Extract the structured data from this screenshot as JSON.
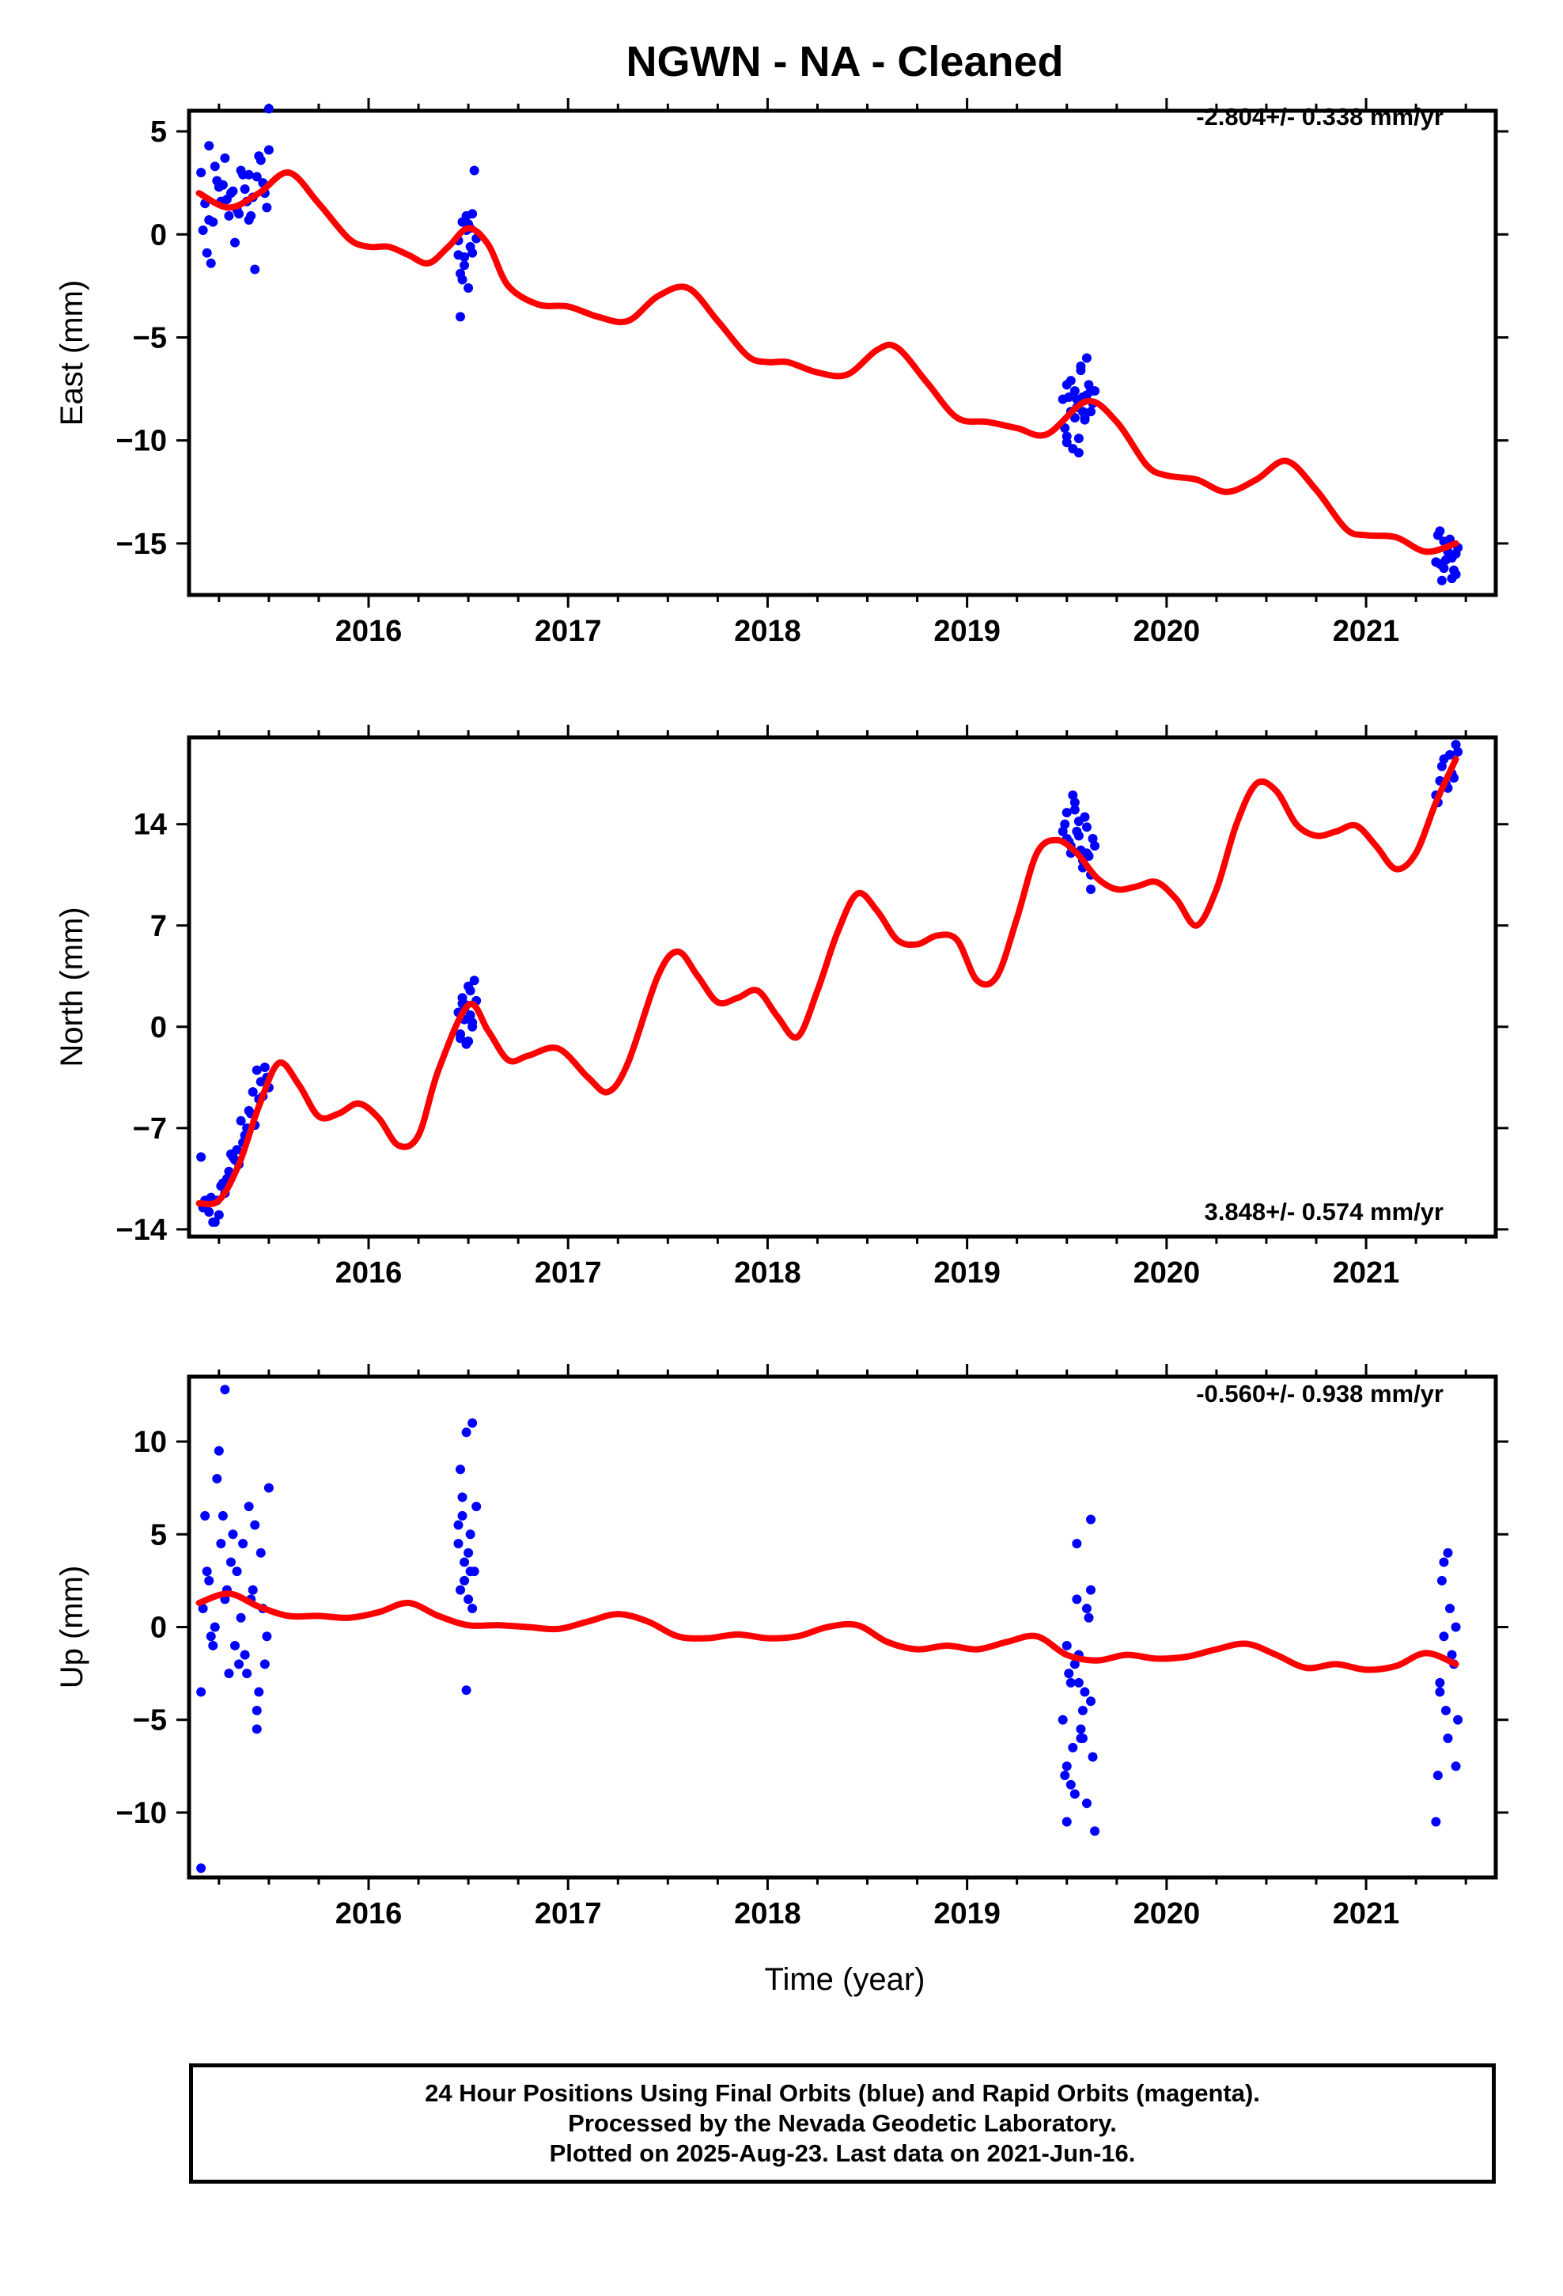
{
  "title": "NGWN  - NA - Cleaned",
  "x_axis_label": "Time (year)",
  "colors": {
    "data_points": "#0000ff",
    "model_fit": "#ff0000",
    "frame": "#000000"
  },
  "footer": {
    "line1": "24 Hour Positions Using Final Orbits (blue) and Rapid Orbits (magenta).",
    "line2": "Processed by the Nevada Geodetic Laboratory.",
    "line3": "Plotted on 2025-Aug-23. Last data on 2021-Jun-16."
  },
  "chart_data": [
    {
      "type": "scatter",
      "ylabel": "East (mm)",
      "rate_label": "-2.804+/- 0.338 mm/yr",
      "xlim": [
        2015.1,
        2021.65
      ],
      "ylim": [
        -17.5,
        6.0
      ],
      "x_ticks": [
        2016,
        2017,
        2018,
        2019,
        2020,
        2021
      ],
      "y_ticks": [
        5,
        0,
        -5,
        -10,
        -15
      ],
      "y_tick_labels": [
        "5",
        "0",
        "−5",
        "−10",
        "−15"
      ],
      "series": [
        {
          "role": "fit",
          "x": [
            2015.15,
            2015.3,
            2015.45,
            2015.6,
            2015.75,
            2015.9,
            2016.0,
            2016.1,
            2016.2,
            2016.3,
            2016.4,
            2016.5,
            2016.6,
            2016.7,
            2016.85,
            2017.0,
            2017.15,
            2017.3,
            2017.45,
            2017.6,
            2017.75,
            2017.9,
            2018.0,
            2018.1,
            2018.25,
            2018.4,
            2018.55,
            2018.65,
            2018.8,
            2018.95,
            2019.1,
            2019.25,
            2019.4,
            2019.6,
            2019.75,
            2019.9,
            2020.0,
            2020.15,
            2020.3,
            2020.45,
            2020.6,
            2020.75,
            2020.9,
            2021.0,
            2021.15,
            2021.3,
            2021.45
          ],
          "y": [
            2.0,
            1.3,
            2.0,
            3.0,
            1.5,
            -0.2,
            -0.6,
            -0.6,
            -1.0,
            -1.4,
            -0.6,
            0.3,
            -0.5,
            -2.5,
            -3.4,
            -3.5,
            -4.0,
            -4.2,
            -3.0,
            -2.6,
            -4.2,
            -5.9,
            -6.2,
            -6.2,
            -6.7,
            -6.8,
            -5.6,
            -5.5,
            -7.2,
            -8.9,
            -9.1,
            -9.4,
            -9.7,
            -8.1,
            -9.1,
            -11.2,
            -11.7,
            -11.9,
            -12.5,
            -11.9,
            -11.0,
            -12.4,
            -14.3,
            -14.6,
            -14.7,
            -15.4,
            -15.0
          ]
        },
        {
          "role": "observations",
          "x": [
            2015.16,
            2015.18,
            2015.2,
            2015.22,
            2015.24,
            2015.26,
            2015.28,
            2015.3,
            2015.32,
            2015.34,
            2015.36,
            2015.38,
            2015.4,
            2015.42,
            2015.44,
            2015.46,
            2015.48,
            2015.5,
            2015.17,
            2015.21,
            2015.25,
            2015.29,
            2015.33,
            2015.37,
            2015.41,
            2015.45,
            2015.49,
            2015.19,
            2015.27,
            2015.35,
            2015.43,
            2015.23,
            2015.31,
            2015.39,
            2015.47,
            2015.2,
            2015.4,
            2015.5,
            2016.45,
            2016.46,
            2016.47,
            2016.48,
            2016.49,
            2016.5,
            2016.51,
            2016.52,
            2016.53,
            2016.54,
            2016.46,
            2016.48,
            2016.5,
            2016.52,
            2016.47,
            2016.49,
            2016.51,
            2016.45,
            2019.48,
            2019.5,
            2019.52,
            2019.54,
            2019.56,
            2019.58,
            2019.6,
            2019.62,
            2019.64,
            2019.49,
            2019.51,
            2019.53,
            2019.55,
            2019.57,
            2019.59,
            2019.61,
            2019.63,
            2019.5,
            2019.54,
            2019.58,
            2019.62,
            2019.52,
            2019.56,
            2019.6,
            2019.55,
            2019.57,
            2019.59,
            2019.5,
            2021.35,
            2021.37,
            2021.39,
            2021.41,
            2021.43,
            2021.45,
            2021.36,
            2021.38,
            2021.4,
            2021.42,
            2021.44,
            2021.46,
            2021.37,
            2021.41,
            2021.45,
            2021.39,
            2021.43
          ],
          "y": [
            3.0,
            1.5,
            4.3,
            0.6,
            2.6,
            1.6,
            3.7,
            0.9,
            2.1,
            1.2,
            3.1,
            2.2,
            0.7,
            1.8,
            2.8,
            3.6,
            2.0,
            4.1,
            0.2,
            -1.4,
            2.3,
            1.7,
            -0.4,
            2.9,
            0.9,
            3.8,
            1.3,
            -0.9,
            2.4,
            1.0,
            -1.7,
            3.3,
            2.0,
            1.6,
            2.5,
            0.7,
            2.9,
            6.1,
            -0.3,
            -1.9,
            0.6,
            -1.1,
            0.2,
            -2.6,
            -0.6,
            1.0,
            3.1,
            -0.2,
            -4.0,
            -1.5,
            0.5,
            -0.9,
            -2.2,
            0.9,
            0.3,
            -1.0,
            -8.0,
            -9.8,
            -7.1,
            -8.9,
            -10.6,
            -7.9,
            -6.0,
            -8.6,
            -7.6,
            -9.4,
            -7.9,
            -10.4,
            -8.4,
            -6.4,
            -9.0,
            -7.3,
            -8.2,
            -10.1,
            -7.6,
            -8.6,
            -7.6,
            -8.6,
            -9.9,
            -7.8,
            -8.0,
            -6.6,
            -8.9,
            -7.3,
            -15.9,
            -14.4,
            -16.2,
            -15.1,
            -16.7,
            -15.5,
            -14.6,
            -16.8,
            -15.8,
            -14.8,
            -16.3,
            -15.2,
            -16.0,
            -15.4,
            -16.5,
            -14.9,
            -15.7
          ]
        }
      ]
    },
    {
      "type": "scatter",
      "ylabel": "North (mm)",
      "rate_label": "3.848+/- 0.574 mm/yr",
      "xlim": [
        2015.1,
        2021.65
      ],
      "ylim": [
        -14.5,
        20.0
      ],
      "x_ticks": [
        2016,
        2017,
        2018,
        2019,
        2020,
        2021
      ],
      "y_ticks": [
        14,
        7,
        0,
        -7,
        -14
      ],
      "y_tick_labels": [
        "14",
        "7",
        "0",
        "−7",
        "−14"
      ],
      "series": [
        {
          "role": "fit",
          "x": [
            2015.15,
            2015.25,
            2015.35,
            2015.45,
            2015.55,
            2015.65,
            2015.75,
            2015.85,
            2015.95,
            2016.05,
            2016.15,
            2016.25,
            2016.35,
            2016.5,
            2016.6,
            2016.7,
            2016.8,
            2016.95,
            2017.1,
            2017.2,
            2017.3,
            2017.45,
            2017.55,
            2017.65,
            2017.75,
            2017.85,
            2017.95,
            2018.05,
            2018.15,
            2018.25,
            2018.35,
            2018.45,
            2018.55,
            2018.65,
            2018.75,
            2018.85,
            2018.95,
            2019.05,
            2019.15,
            2019.25,
            2019.35,
            2019.45,
            2019.55,
            2019.65,
            2019.75,
            2019.85,
            2019.95,
            2020.05,
            2020.15,
            2020.25,
            2020.35,
            2020.45,
            2020.55,
            2020.65,
            2020.75,
            2020.85,
            2020.95,
            2021.05,
            2021.15,
            2021.25,
            2021.35,
            2021.45
          ],
          "y": [
            -12.2,
            -12.0,
            -9.5,
            -5.5,
            -2.5,
            -4.0,
            -6.2,
            -6.0,
            -5.3,
            -6.3,
            -8.2,
            -7.5,
            -3.0,
            1.5,
            -0.3,
            -2.3,
            -2.0,
            -1.5,
            -3.5,
            -4.5,
            -2.5,
            3.5,
            5.2,
            3.5,
            1.7,
            2.0,
            2.5,
            0.7,
            -0.7,
            2.5,
            6.5,
            9.2,
            8.0,
            6.0,
            5.7,
            6.3,
            6.0,
            3.2,
            3.5,
            7.5,
            12.0,
            12.9,
            12.0,
            10.3,
            9.5,
            9.7,
            10.0,
            8.8,
            7.0,
            9.5,
            14.0,
            16.8,
            16.3,
            14.0,
            13.2,
            13.5,
            13.9,
            12.5,
            10.9,
            12.0,
            15.5,
            18.5
          ]
        },
        {
          "role": "observations",
          "x": [
            2015.16,
            2015.18,
            2015.2,
            2015.22,
            2015.24,
            2015.26,
            2015.28,
            2015.3,
            2015.32,
            2015.34,
            2015.36,
            2015.38,
            2015.4,
            2015.42,
            2015.44,
            2015.46,
            2015.48,
            2015.5,
            2015.17,
            2015.21,
            2015.25,
            2015.29,
            2015.33,
            2015.37,
            2015.41,
            2015.45,
            2015.49,
            2015.19,
            2015.27,
            2015.35,
            2015.43,
            2015.23,
            2015.31,
            2015.39,
            2015.47,
            2016.45,
            2016.46,
            2016.47,
            2016.48,
            2016.49,
            2016.5,
            2016.51,
            2016.52,
            2016.53,
            2016.54,
            2016.46,
            2016.48,
            2016.5,
            2016.52,
            2016.47,
            2016.49,
            2016.51,
            2019.48,
            2019.5,
            2019.52,
            2019.54,
            2019.56,
            2019.58,
            2019.6,
            2019.62,
            2019.64,
            2019.49,
            2019.51,
            2019.53,
            2019.55,
            2019.57,
            2019.59,
            2019.61,
            2019.63,
            2019.5,
            2019.54,
            2019.58,
            2019.62,
            2019.52,
            2019.56,
            2019.6,
            2021.35,
            2021.37,
            2021.39,
            2021.41,
            2021.43,
            2021.45,
            2021.36,
            2021.38,
            2021.4,
            2021.42,
            2021.44,
            2021.46
          ],
          "y": [
            -9.0,
            -12.0,
            -12.8,
            -13.5,
            -12.0,
            -11.0,
            -11.5,
            -10.0,
            -9.0,
            -8.5,
            -6.5,
            -7.5,
            -5.8,
            -4.5,
            -3.0,
            -3.8,
            -2.8,
            -4.2,
            -12.5,
            -11.8,
            -13.0,
            -10.5,
            -9.2,
            -8.0,
            -6.0,
            -5.0,
            -3.5,
            -12.0,
            -10.8,
            -9.5,
            -6.8,
            -13.5,
            -8.8,
            -7.0,
            -4.8,
            1.0,
            -0.5,
            2.0,
            0.5,
            1.5,
            -1.0,
            2.5,
            0.0,
            3.2,
            1.8,
            -0.8,
            1.2,
            2.8,
            0.3,
            1.6,
            -1.2,
            0.8,
            13.5,
            14.8,
            12.0,
            15.5,
            13.2,
            11.0,
            13.8,
            10.5,
            12.5,
            14.0,
            12.8,
            16.0,
            13.5,
            12.2,
            14.5,
            11.8,
            13.0,
            13.0,
            15.0,
            11.5,
            9.5,
            12.5,
            14.2,
            12.0,
            16.0,
            17.0,
            18.5,
            16.5,
            17.5,
            19.5,
            15.5,
            18.0,
            16.8,
            18.8,
            17.2,
            19.0
          ]
        }
      ]
    },
    {
      "type": "scatter",
      "ylabel": "Up (mm)",
      "rate_label": "-0.560+/- 0.938 mm/yr",
      "xlim": [
        2015.1,
        2021.65
      ],
      "ylim": [
        -13.5,
        13.5
      ],
      "x_ticks": [
        2016,
        2017,
        2018,
        2019,
        2020,
        2021
      ],
      "y_ticks": [
        10,
        5,
        0,
        -5,
        -10
      ],
      "y_tick_labels": [
        "10",
        "5",
        "0",
        "−5",
        "−10"
      ],
      "series": [
        {
          "role": "fit",
          "x": [
            2015.15,
            2015.3,
            2015.45,
            2015.6,
            2015.75,
            2015.9,
            2016.05,
            2016.2,
            2016.35,
            2016.5,
            2016.65,
            2016.8,
            2016.95,
            2017.1,
            2017.25,
            2017.4,
            2017.55,
            2017.7,
            2017.85,
            2018.0,
            2018.15,
            2018.3,
            2018.45,
            2018.6,
            2018.75,
            2018.9,
            2019.05,
            2019.2,
            2019.35,
            2019.5,
            2019.65,
            2019.8,
            2019.95,
            2020.1,
            2020.25,
            2020.4,
            2020.55,
            2020.7,
            2020.85,
            2021.0,
            2021.15,
            2021.3,
            2021.45
          ],
          "y": [
            1.3,
            1.8,
            1.1,
            0.6,
            0.6,
            0.5,
            0.8,
            1.3,
            0.6,
            0.1,
            0.1,
            0.0,
            -0.1,
            0.3,
            0.7,
            0.3,
            -0.5,
            -0.6,
            -0.4,
            -0.6,
            -0.5,
            0.0,
            0.1,
            -0.8,
            -1.2,
            -1.0,
            -1.2,
            -0.8,
            -0.5,
            -1.5,
            -1.8,
            -1.5,
            -1.7,
            -1.6,
            -1.2,
            -0.9,
            -1.5,
            -2.2,
            -2.0,
            -2.3,
            -2.1,
            -1.4,
            -2.0
          ]
        },
        {
          "role": "observations",
          "x": [
            2015.16,
            2015.18,
            2015.2,
            2015.22,
            2015.24,
            2015.26,
            2015.28,
            2015.3,
            2015.32,
            2015.34,
            2015.36,
            2015.38,
            2015.4,
            2015.42,
            2015.44,
            2015.46,
            2015.48,
            2015.5,
            2015.17,
            2015.21,
            2015.25,
            2015.29,
            2015.33,
            2015.37,
            2015.41,
            2015.45,
            2015.49,
            2015.19,
            2015.27,
            2015.35,
            2015.43,
            2015.23,
            2015.31,
            2015.39,
            2015.47,
            2015.16,
            2015.28,
            2015.44,
            2016.45,
            2016.46,
            2016.47,
            2016.48,
            2016.49,
            2016.5,
            2016.51,
            2016.52,
            2016.53,
            2016.54,
            2016.46,
            2016.48,
            2016.5,
            2016.52,
            2016.47,
            2016.49,
            2016.51,
            2016.45,
            2019.48,
            2019.5,
            2019.52,
            2019.54,
            2019.56,
            2019.58,
            2019.6,
            2019.62,
            2019.64,
            2019.49,
            2019.51,
            2019.53,
            2019.55,
            2019.57,
            2019.59,
            2019.61,
            2019.63,
            2019.5,
            2019.54,
            2019.58,
            2019.62,
            2019.52,
            2019.56,
            2019.6,
            2019.55,
            2019.57,
            2019.5,
            2019.62,
            2021.35,
            2021.37,
            2021.39,
            2021.41,
            2021.43,
            2021.45,
            2021.36,
            2021.38,
            2021.4,
            2021.42,
            2021.44,
            2021.46,
            2021.37,
            2021.41,
            2021.45,
            2021.39
          ],
          "y": [
            -3.5,
            6.0,
            2.5,
            -1.0,
            8.0,
            4.5,
            1.5,
            -2.5,
            5.0,
            3.0,
            0.5,
            -1.5,
            6.5,
            2.0,
            -4.5,
            4.0,
            -2.0,
            7.5,
            1.0,
            -0.5,
            9.5,
            2.0,
            -1.0,
            4.5,
            1.5,
            -3.5,
            -0.5,
            3.0,
            6.0,
            -2.0,
            5.5,
            0.0,
            3.5,
            -2.5,
            1.0,
            -13.0,
            12.8,
            -5.5,
            4.5,
            2.0,
            7.0,
            3.5,
            10.5,
            1.5,
            5.0,
            11.0,
            3.0,
            6.5,
            8.5,
            2.5,
            4.0,
            1.0,
            6.0,
            -3.4,
            3.0,
            5.5,
            -5.0,
            -7.5,
            -3.0,
            -9.0,
            -1.5,
            -6.0,
            1.0,
            -4.0,
            -11.0,
            -8.0,
            -2.5,
            -6.5,
            4.5,
            -5.5,
            -3.5,
            0.5,
            -7.0,
            -10.5,
            -2.0,
            -4.5,
            5.8,
            -8.5,
            -3.0,
            -9.5,
            1.5,
            -6.0,
            -1.0,
            2.0,
            -10.5,
            -3.5,
            3.5,
            -6.0,
            -1.5,
            0.0,
            -8.0,
            2.5,
            -4.5,
            1.0,
            -2.0,
            -5.0,
            -3.0,
            4.0,
            -7.5,
            -0.5
          ]
        }
      ]
    }
  ]
}
